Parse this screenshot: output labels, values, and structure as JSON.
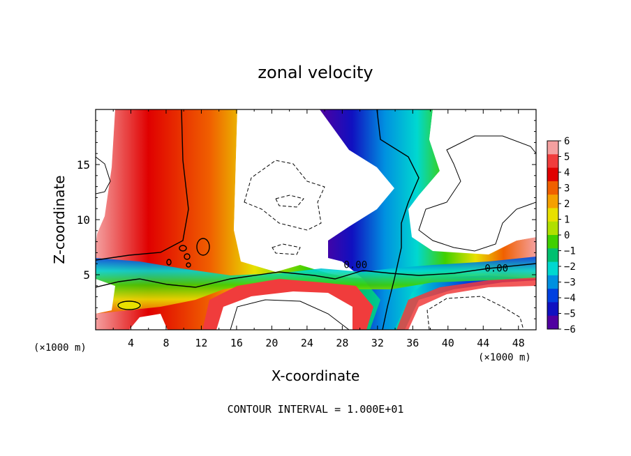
{
  "chart_data": {
    "type": "heatmap",
    "title": "zonal velocity",
    "xlabel": "X-coordinate",
    "ylabel": "Z-coordinate",
    "x_unit_label": "(×1000 m)",
    "x_unit_label_right": "(×1000 m)",
    "footer": "CONTOUR INTERVAL = 1.000E+01",
    "xlim": [
      0,
      50
    ],
    "ylim": [
      0,
      20
    ],
    "x_ticks": [
      "4",
      "8",
      "12",
      "16",
      "20",
      "24",
      "28",
      "32",
      "36",
      "40",
      "44",
      "48"
    ],
    "y_ticks": [
      "5",
      "10",
      "15"
    ],
    "colorbar": {
      "min": -6,
      "max": 6,
      "tick_labels": [
        "6",
        "5",
        "4",
        "3",
        "2",
        "1",
        "0",
        "−1",
        "−2",
        "−3",
        "−4",
        "−5",
        "−6"
      ],
      "colors": [
        "#f4a0a0",
        "#f03c3c",
        "#e00000",
        "#f06000",
        "#f5a000",
        "#e8e000",
        "#b0e000",
        "#40d000",
        "#00c070",
        "#00d8d0",
        "#0090e0",
        "#0040e0",
        "#1010c0",
        "#5000a0"
      ]
    },
    "contour_labels": [
      "0.00",
      "0.00"
    ],
    "contour_zero_label_positions": [
      [
        29.5,
        5.6
      ],
      [
        45.5,
        5.3
      ]
    ]
  }
}
